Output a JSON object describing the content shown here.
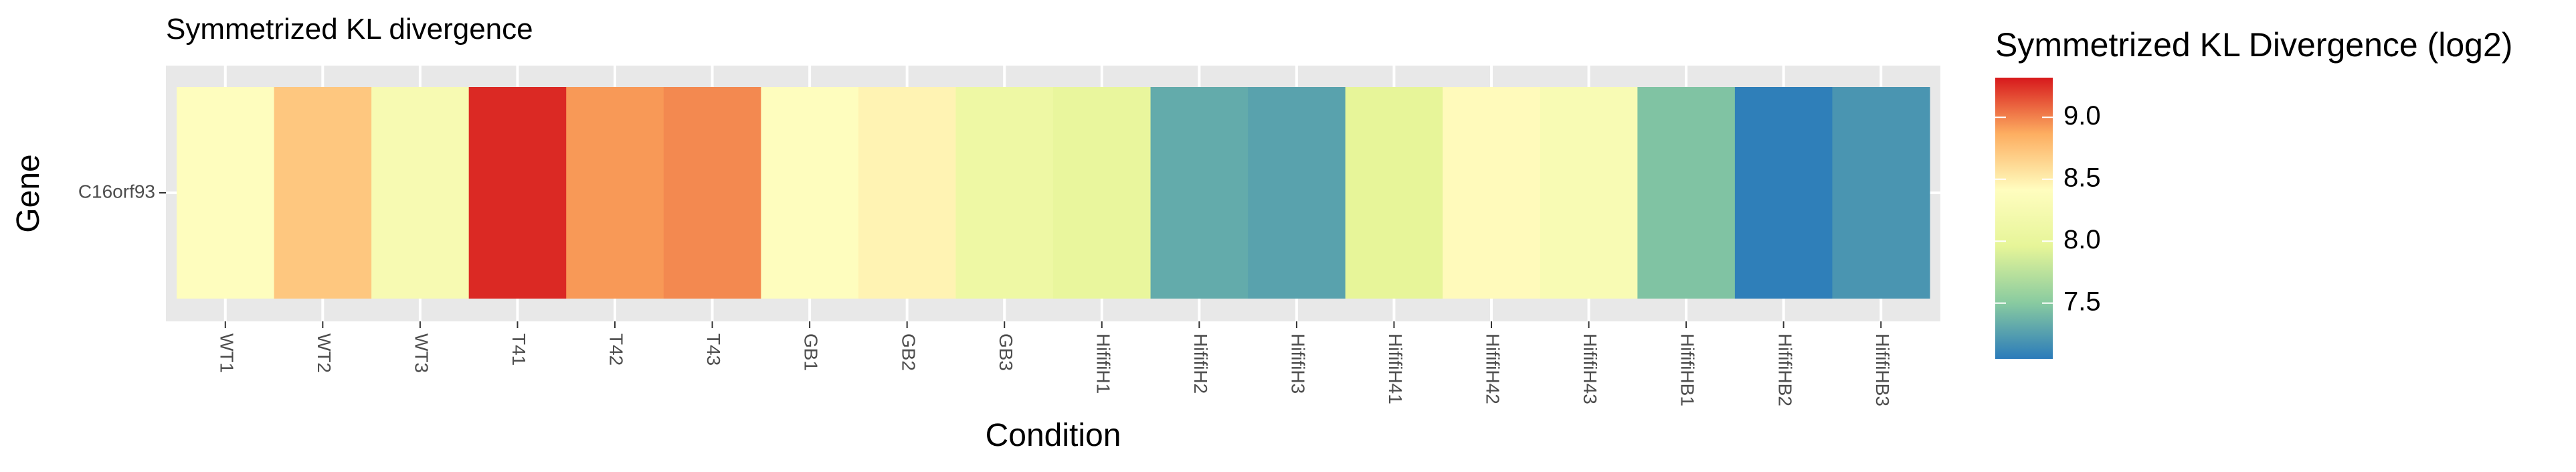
{
  "chart_data": {
    "type": "heatmap",
    "title": "Symmetrized KL divergence",
    "xlabel": "Condition",
    "ylabel": "Gene",
    "y_categories": [
      "C16orf93"
    ],
    "x_categories": [
      "WT1",
      "WT2",
      "WT3",
      "T41",
      "T42",
      "T43",
      "GB1",
      "GB2",
      "GB3",
      "HififiH1",
      "HififiH2",
      "HififiH3",
      "HififiH41",
      "HififiH42",
      "HififiH43",
      "HififiHB1",
      "HififiHB2",
      "HififiHB3"
    ],
    "values": [
      [
        8.4,
        8.72,
        8.26,
        9.27,
        8.93,
        8.98,
        8.4,
        8.47,
        8.1,
        8.02,
        7.32,
        7.27,
        7.97,
        8.43,
        8.28,
        7.46,
        7.07,
        7.2
      ]
    ],
    "legend": {
      "title": "Symmetrized KL Divergence (log2)",
      "ticks": [
        9.0,
        8.5,
        8.0,
        7.5
      ],
      "tick_labels": [
        "9.0",
        "8.5",
        "8.0",
        "7.5"
      ],
      "range": [
        7.05,
        9.32
      ],
      "placement": "right"
    },
    "colors": {
      "panel_background": "#e8e8e8",
      "grid": "#ffffff",
      "palette": [
        "#2b7bba",
        "#89cba0",
        "#e6f598",
        "#fffdbf",
        "#fdae61",
        "#d7191c"
      ]
    }
  }
}
